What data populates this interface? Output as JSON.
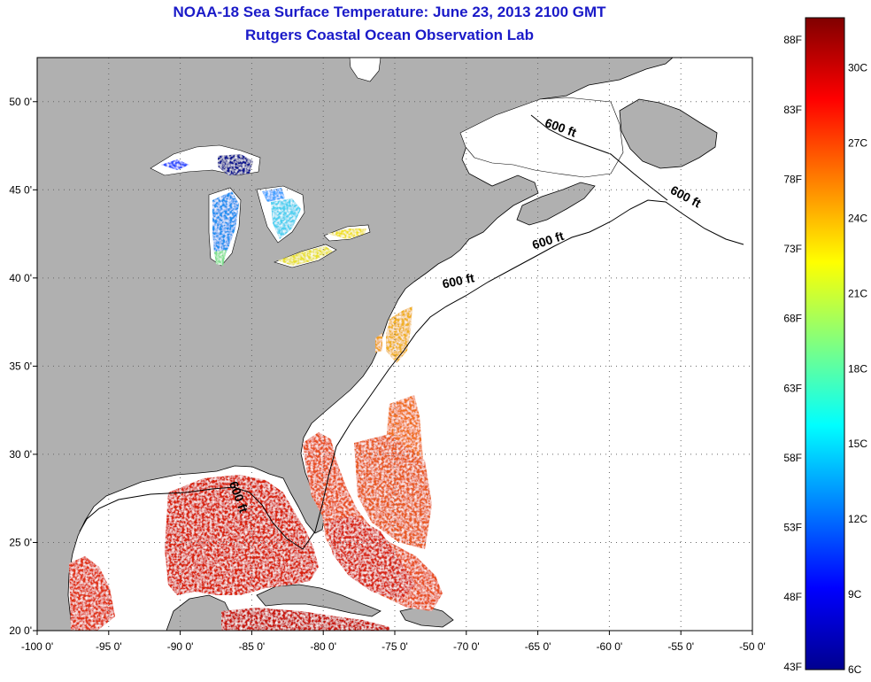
{
  "title": {
    "line1": "NOAA-18 Sea Surface Temperature:  June 23, 2013 2100 GMT",
    "line2": "Rutgers Coastal Ocean Observation Lab"
  },
  "map": {
    "lon_range": [
      -100,
      -50
    ],
    "lat_range": [
      20,
      52.5
    ],
    "lon_ticks": [
      {
        "value": -100,
        "label": "-100 0'"
      },
      {
        "value": -95,
        "label": "-95 0'"
      },
      {
        "value": -90,
        "label": "-90 0'"
      },
      {
        "value": -85,
        "label": "-85 0'"
      },
      {
        "value": -80,
        "label": "-80 0'"
      },
      {
        "value": -75,
        "label": "-75 0'"
      },
      {
        "value": -70,
        "label": "-70 0'"
      },
      {
        "value": -65,
        "label": "-65 0'"
      },
      {
        "value": -60,
        "label": "-60 0'"
      },
      {
        "value": -55,
        "label": "-55 0'"
      },
      {
        "value": -50,
        "label": "-50 0'"
      }
    ],
    "lat_ticks": [
      {
        "value": 20,
        "label": "20 0'"
      },
      {
        "value": 25,
        "label": "25 0'"
      },
      {
        "value": 30,
        "label": "30 0'"
      },
      {
        "value": 35,
        "label": "35 0'"
      },
      {
        "value": 40,
        "label": "40 0'"
      },
      {
        "value": 45,
        "label": "45 0'"
      },
      {
        "value": 50,
        "label": "50 0'"
      }
    ],
    "grid": "dotted",
    "land_color": "#b0b0b0",
    "no_data_color": "#ffffff",
    "depth_contour_labels": [
      {
        "text": "600 ft",
        "lon": -63.5,
        "lat": 48.3,
        "rotate": 20
      },
      {
        "text": "600 ft",
        "lon": -54.8,
        "lat": 44.4,
        "rotate": 28
      },
      {
        "text": "600 ft",
        "lon": -64.2,
        "lat": 41.9,
        "rotate": -18
      },
      {
        "text": "600 ft",
        "lon": -70.5,
        "lat": 39.6,
        "rotate": -12
      },
      {
        "text": "600 ft",
        "lon": -86.2,
        "lat": 27.5,
        "rotate": 70
      }
    ]
  },
  "colorbar": {
    "f_labels": [
      {
        "value": 43,
        "label": "43F"
      },
      {
        "value": 48,
        "label": "48F"
      },
      {
        "value": 53,
        "label": "53F"
      },
      {
        "value": 58,
        "label": "58F"
      },
      {
        "value": 63,
        "label": "63F"
      },
      {
        "value": 68,
        "label": "68F"
      },
      {
        "value": 73,
        "label": "73F"
      },
      {
        "value": 78,
        "label": "78F"
      },
      {
        "value": 83,
        "label": "83F"
      },
      {
        "value": 88,
        "label": "88F"
      }
    ],
    "c_labels": [
      {
        "value": 6,
        "label": "6C"
      },
      {
        "value": 9,
        "label": "9C"
      },
      {
        "value": 12,
        "label": "12C"
      },
      {
        "value": 15,
        "label": "15C"
      },
      {
        "value": 18,
        "label": "18C"
      },
      {
        "value": 21,
        "label": "21C"
      },
      {
        "value": 24,
        "label": "24C"
      },
      {
        "value": 27,
        "label": "27C"
      },
      {
        "value": 30,
        "label": "30C"
      }
    ],
    "range_c": [
      6,
      32
    ],
    "colors": [
      "#00008f",
      "#0000ff",
      "#0080ff",
      "#00ffff",
      "#80ff80",
      "#ffff00",
      "#ff8000",
      "#ff0000",
      "#800000"
    ]
  }
}
